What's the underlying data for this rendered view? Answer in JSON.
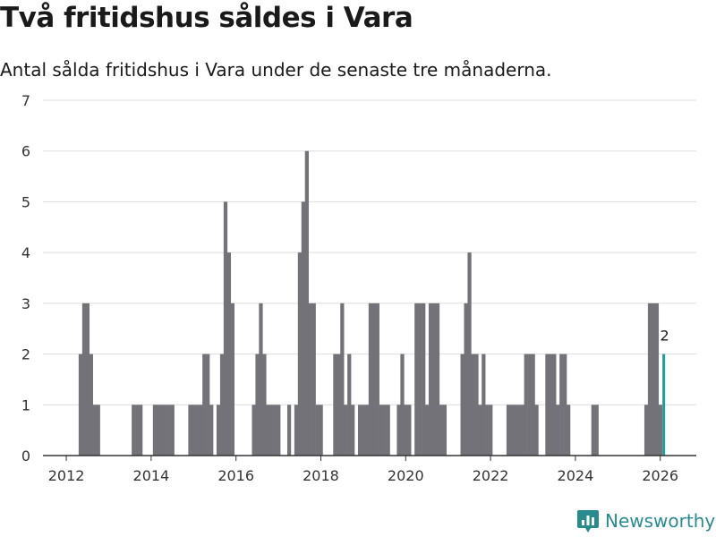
{
  "title": "Två fritidshus såldes i Vara",
  "subtitle": "Antal sålda fritidshus i Vara under de senaste tre månaderna.",
  "brand": {
    "name": "Newsworthy",
    "icon": "newsworthy-logo-icon"
  },
  "colors": {
    "bar": "#737278",
    "highlight": "#1e9e95",
    "grid": "#dddddd",
    "axis": "#333333",
    "brand": "#2a8b8f"
  },
  "chart_data": {
    "type": "bar",
    "title": "Två fritidshus såldes i Vara",
    "subtitle": "Antal sålda fritidshus i Vara under de senaste tre månaderna.",
    "xlabel": "",
    "ylabel": "",
    "xlim": [
      2011.45,
      2026.85
    ],
    "ylim": [
      0,
      7
    ],
    "yticks": [
      0,
      1,
      2,
      3,
      4,
      5,
      6,
      7
    ],
    "xticks": [
      2012,
      2014,
      2016,
      2018,
      2020,
      2022,
      2024,
      2026
    ],
    "grid": true,
    "bar_width_years": 0.0833,
    "x": [
      2012.333,
      2012.417,
      2012.5,
      2012.583,
      2012.667,
      2012.75,
      2013.583,
      2013.667,
      2013.75,
      2014.083,
      2014.167,
      2014.25,
      2014.333,
      2014.417,
      2014.5,
      2014.917,
      2015.0,
      2015.083,
      2015.167,
      2015.25,
      2015.333,
      2015.417,
      2015.583,
      2015.667,
      2015.75,
      2015.833,
      2015.917,
      2016.417,
      2016.5,
      2016.583,
      2016.667,
      2016.75,
      2016.833,
      2016.917,
      2017.0,
      2017.25,
      2017.417,
      2017.5,
      2017.583,
      2017.667,
      2017.75,
      2017.833,
      2017.917,
      2018.0,
      2018.333,
      2018.417,
      2018.5,
      2018.583,
      2018.667,
      2018.75,
      2018.917,
      2019.0,
      2019.083,
      2019.167,
      2019.25,
      2019.333,
      2019.417,
      2019.5,
      2019.583,
      2019.833,
      2019.917,
      2020.0,
      2020.083,
      2020.25,
      2020.333,
      2020.417,
      2020.5,
      2020.583,
      2020.667,
      2020.75,
      2020.833,
      2020.917,
      2021.333,
      2021.417,
      2021.5,
      2021.583,
      2021.667,
      2021.75,
      2021.833,
      2021.917,
      2022.0,
      2022.417,
      2022.5,
      2022.583,
      2022.667,
      2022.75,
      2022.833,
      2022.917,
      2023.0,
      2023.083,
      2023.333,
      2023.417,
      2023.5,
      2023.583,
      2023.667,
      2023.75,
      2023.833,
      2024.417,
      2024.5,
      2025.667,
      2025.75,
      2025.833,
      2025.917,
      2026.0,
      2026.083
    ],
    "values": [
      2,
      3,
      3,
      2,
      1,
      1,
      1,
      1,
      1,
      1,
      1,
      1,
      1,
      1,
      1,
      1,
      1,
      1,
      1,
      2,
      2,
      1,
      1,
      2,
      5,
      4,
      3,
      1,
      2,
      3,
      2,
      1,
      1,
      1,
      1,
      1,
      1,
      4,
      5,
      6,
      3,
      3,
      1,
      1,
      2,
      2,
      3,
      1,
      2,
      1,
      1,
      1,
      1,
      3,
      3,
      3,
      1,
      1,
      1,
      1,
      2,
      1,
      1,
      3,
      3,
      3,
      1,
      3,
      3,
      3,
      1,
      1,
      2,
      3,
      4,
      2,
      2,
      1,
      2,
      1,
      1,
      1,
      1,
      1,
      1,
      1,
      2,
      2,
      2,
      1,
      2,
      2,
      2,
      1,
      2,
      2,
      1,
      1,
      1,
      1,
      3,
      3,
      3,
      1,
      2
    ],
    "highlight_index": 104,
    "annotation": {
      "text": "2",
      "x": 2026.083,
      "y": 2
    }
  }
}
